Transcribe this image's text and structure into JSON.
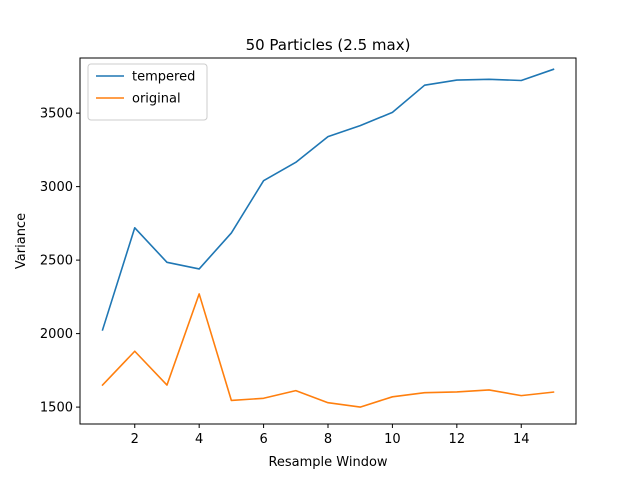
{
  "chart_data": {
    "type": "line",
    "title": "50 Particles (2.5 max)",
    "xlabel": "Resample Window",
    "ylabel": "Variance",
    "x": [
      1,
      2,
      3,
      4,
      5,
      6,
      7,
      8,
      9,
      10,
      11,
      12,
      13,
      14,
      15
    ],
    "xlim": [
      0.3,
      15.7
    ],
    "ylim": [
      1385,
      3875
    ],
    "xticks": [
      2,
      4,
      6,
      8,
      10,
      12,
      14
    ],
    "yticks": [
      1500,
      2000,
      2500,
      3000,
      3500
    ],
    "grid": false,
    "legend_position": "top-left",
    "series": [
      {
        "name": "tempered",
        "color": "#1f77b4",
        "values": [
          2025,
          2720,
          2485,
          2440,
          2685,
          3040,
          3165,
          3340,
          3415,
          3505,
          3690,
          3725,
          3730,
          3722,
          3798
        ]
      },
      {
        "name": "original",
        "color": "#ff7f0e",
        "values": [
          1650,
          1880,
          1650,
          2270,
          1545,
          1560,
          1612,
          1530,
          1500,
          1570,
          1598,
          1603,
          1617,
          1578,
          1602
        ]
      }
    ]
  }
}
